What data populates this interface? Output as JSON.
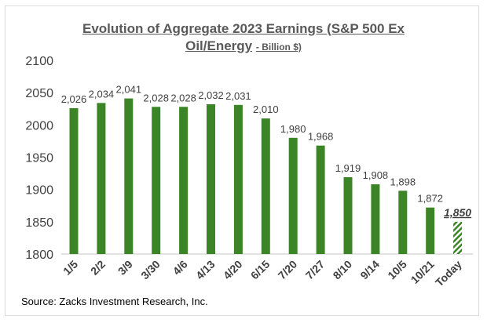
{
  "chart_data": {
    "type": "bar",
    "title_line1": "Evolution of Aggregate 2023 Earnings (S&P 500 Ex",
    "title_line2": "Oil/Energy",
    "title_suffix": "- Billion $)",
    "categories": [
      "1/5",
      "2/2",
      "3/9",
      "3/30",
      "4/6",
      "4/13",
      "4/20",
      "6/15",
      "7/20",
      "7/27",
      "8/10",
      "9/14",
      "10/5",
      "10/21",
      "Today"
    ],
    "values": [
      2026,
      2034,
      2041,
      2028,
      2028,
      2032,
      2031,
      2010,
      1980,
      1968,
      1919,
      1908,
      1898,
      1872,
      1850
    ],
    "data_labels": [
      "2,026",
      "2,034",
      "2,041",
      "2,028",
      "2,028",
      "2,032",
      "2,031",
      "2,010",
      "1,980",
      "1,968",
      "1,919",
      "1,908",
      "1,898",
      "1,872",
      "1,850"
    ],
    "highlight_last": true,
    "ylim": [
      1800,
      2100
    ],
    "yticks": [
      1800,
      1850,
      1900,
      1950,
      2000,
      2050,
      2100
    ],
    "xlabel": "",
    "ylabel": "",
    "grid": false,
    "bar_color": "#3c8527"
  },
  "source": "Source: Zacks Investment Research, Inc."
}
